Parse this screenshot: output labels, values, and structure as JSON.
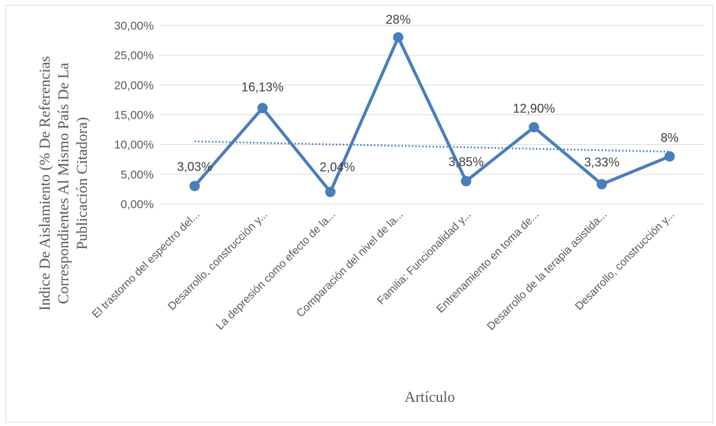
{
  "chart_data": {
    "type": "line",
    "categories": [
      "El trastorno del espectro del...",
      "Desarrollo, construcción y...",
      "La depresión como efecto de la...",
      "Comparación del nivel de la...",
      "Familia: Funcionalidad y...",
      "Entrenamiento en toma de...",
      "Desarrollo de la terapia asistida...",
      "Desarrollo, construcción y..."
    ],
    "values": [
      3.03,
      16.13,
      2.04,
      28.0,
      3.85,
      12.9,
      3.33,
      8.0
    ],
    "data_labels": [
      "3,03%",
      "16,13%",
      "2,04%",
      "28%",
      "3,85%",
      "12,90%",
      "3,33%",
      "8%"
    ],
    "y_ticks": [
      "0,00%",
      "5,00%",
      "10,00%",
      "15,00%",
      "20,00%",
      "25,00%",
      "30,00%"
    ],
    "ylim": [
      0,
      30
    ],
    "ylabel_lines": [
      "Indice De Aislamiento (% De Referencias",
      "Correspondientes Al Mismo País De La",
      "Publicación Citadora)"
    ],
    "xlabel": "Artículo",
    "trendline": "linear",
    "grid": true,
    "colors": {
      "series": "#4a7ebb",
      "trend": "#4a7ebb"
    }
  }
}
